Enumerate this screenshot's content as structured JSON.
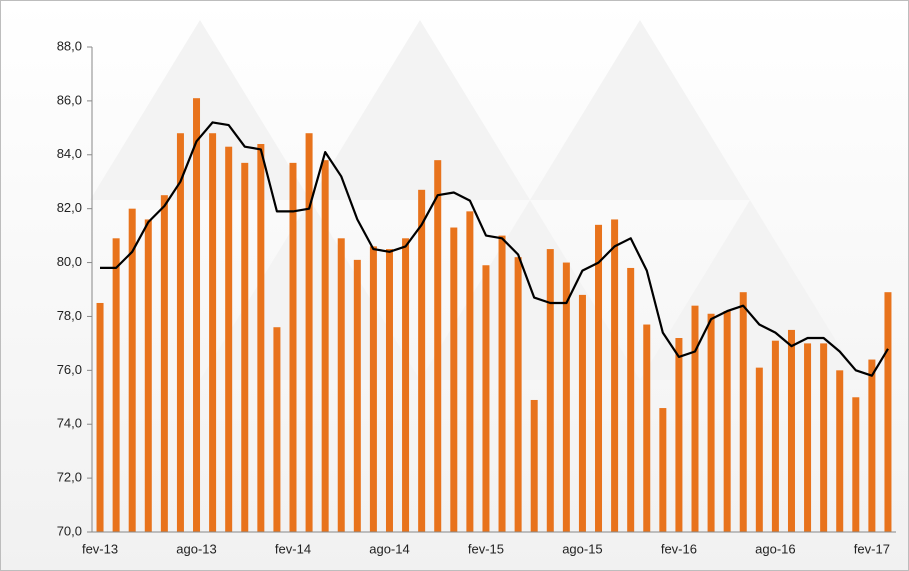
{
  "chart_data": {
    "type": "bar-line",
    "categories": [
      "fev-13",
      null,
      null,
      null,
      null,
      null,
      "ago-13",
      null,
      null,
      null,
      null,
      null,
      "fev-14",
      null,
      null,
      null,
      null,
      null,
      "ago-14",
      null,
      null,
      null,
      null,
      null,
      "fev-15",
      null,
      null,
      null,
      null,
      null,
      "ago-15",
      null,
      null,
      null,
      null,
      null,
      "fev-16",
      null,
      null,
      null,
      null,
      null,
      "ago-16",
      null,
      null,
      null,
      null,
      null,
      "fev-17",
      null
    ],
    "series": [
      {
        "type": "bar",
        "color": "#e8731c",
        "values": [
          78.5,
          80.9,
          82.0,
          81.6,
          82.5,
          84.8,
          86.1,
          84.8,
          84.3,
          83.7,
          84.4,
          77.6,
          83.7,
          84.8,
          83.8,
          80.9,
          80.1,
          80.6,
          80.5,
          80.9,
          82.7,
          83.8,
          81.3,
          81.9,
          79.9,
          81.0,
          80.2,
          74.9,
          80.5,
          80.0,
          78.8,
          81.4,
          81.6,
          79.8,
          77.7,
          74.6,
          77.2,
          78.4,
          78.1,
          78.2,
          78.9,
          76.1,
          77.1,
          77.5,
          77.0,
          77.0,
          76.0,
          75.0,
          76.4,
          78.9
        ]
      },
      {
        "type": "line",
        "color": "#000000",
        "values": [
          79.8,
          79.8,
          80.4,
          81.5,
          82.1,
          83.0,
          84.5,
          85.2,
          85.1,
          84.3,
          84.2,
          81.9,
          81.9,
          82.0,
          84.1,
          83.2,
          81.6,
          80.5,
          80.4,
          80.6,
          81.4,
          82.5,
          82.6,
          82.3,
          81.0,
          80.9,
          80.3,
          78.7,
          78.5,
          78.5,
          79.7,
          80.0,
          80.6,
          80.9,
          79.7,
          77.4,
          76.5,
          76.7,
          77.9,
          78.2,
          78.4,
          77.7,
          77.4,
          76.9,
          77.2,
          77.2,
          76.7,
          76.0,
          75.8,
          76.8
        ]
      }
    ],
    "ylim": [
      70,
      88
    ],
    "yticks": [
      {
        "value": 70,
        "label": "70,0"
      },
      {
        "value": 72,
        "label": "72,0"
      },
      {
        "value": 74,
        "label": "74,0"
      },
      {
        "value": 76,
        "label": "76,0"
      },
      {
        "value": 78,
        "label": "78,0"
      },
      {
        "value": 80,
        "label": "80,0"
      },
      {
        "value": 82,
        "label": "82,0"
      },
      {
        "value": 84,
        "label": "84,0"
      },
      {
        "value": 86,
        "label": "86,0"
      },
      {
        "value": 88,
        "label": "88,0"
      }
    ],
    "grid": false
  }
}
